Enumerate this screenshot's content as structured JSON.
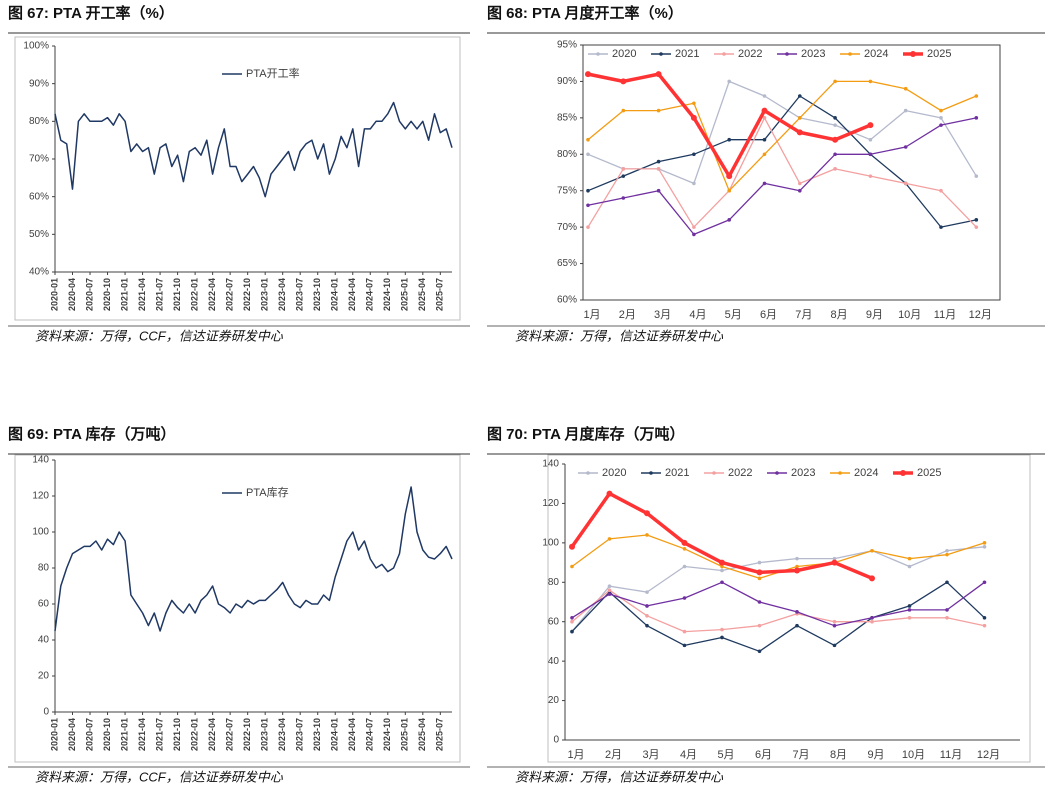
{
  "chart_data": [
    {
      "type": "line",
      "title": "图 67:  PTA 开工率（%）",
      "source": "资料来源：万得，CCF，信达证券研发中心",
      "x": [
        "2020-01",
        "2020-02",
        "2020-03",
        "2020-04",
        "2020-05",
        "2020-06",
        "2020-07",
        "2020-08",
        "2020-09",
        "2020-10",
        "2020-11",
        "2020-12",
        "2021-01",
        "2021-02",
        "2021-03",
        "2021-04",
        "2021-05",
        "2021-06",
        "2021-07",
        "2021-08",
        "2021-09",
        "2021-10",
        "2021-11",
        "2021-12",
        "2022-01",
        "2022-02",
        "2022-03",
        "2022-04",
        "2022-05",
        "2022-06",
        "2022-07",
        "2022-08",
        "2022-09",
        "2022-10",
        "2022-11",
        "2022-12",
        "2023-01",
        "2023-02",
        "2023-03",
        "2023-04",
        "2023-05",
        "2023-06",
        "2023-07",
        "2023-08",
        "2023-09",
        "2023-10",
        "2023-11",
        "2023-12",
        "2024-01",
        "2024-02",
        "2024-03",
        "2024-04",
        "2024-05",
        "2024-06",
        "2024-07",
        "2024-08",
        "2024-09",
        "2024-10",
        "2024-11",
        "2024-12",
        "2025-01",
        "2025-02",
        "2025-03",
        "2025-04",
        "2025-05",
        "2025-06",
        "2025-07",
        "2025-08",
        "2025-09"
      ],
      "xticks": [
        "2020-01",
        "2020-04",
        "2020-07",
        "2020-10",
        "2021-01",
        "2021-04",
        "2021-07",
        "2021-10",
        "2022-01",
        "2022-04",
        "2022-07",
        "2022-10",
        "2023-01",
        "2023-04",
        "2023-07",
        "2023-10",
        "2024-01",
        "2024-04",
        "2024-07",
        "2024-10",
        "2025-01",
        "2025-04",
        "2025-07"
      ],
      "series": [
        {
          "name": "PTA开工率",
          "color": "#1f3864",
          "values": [
            82,
            75,
            74,
            62,
            80,
            82,
            80,
            80,
            80,
            81,
            79,
            82,
            80,
            72,
            74,
            72,
            73,
            66,
            73,
            74,
            68,
            71,
            64,
            72,
            73,
            71,
            75,
            66,
            73,
            78,
            68,
            68,
            64,
            66,
            68,
            65,
            60,
            66,
            68,
            70,
            72,
            67,
            72,
            74,
            75,
            70,
            74,
            66,
            70,
            76,
            73,
            78,
            68,
            78,
            78,
            80,
            80,
            82,
            85,
            80,
            78,
            80,
            78,
            80,
            75,
            82,
            77,
            78,
            73
          ]
        }
      ],
      "ylim": [
        40,
        100
      ],
      "yticks": [
        {
          "value": 40,
          "label": "40%"
        },
        {
          "value": 50,
          "label": "50%"
        },
        {
          "value": 60,
          "label": "60%"
        },
        {
          "value": 70,
          "label": "70%"
        },
        {
          "value": 80,
          "label": "80%"
        },
        {
          "value": 90,
          "label": "90%"
        },
        {
          "value": 100,
          "label": "100%"
        }
      ]
    },
    {
      "type": "line",
      "title": "图 68:  PTA 月度开工率（%）",
      "source": "资料来源：万得，信达证券研发中心",
      "categories": [
        "1月",
        "2月",
        "3月",
        "4月",
        "5月",
        "6月",
        "7月",
        "8月",
        "9月",
        "10月",
        "11月",
        "12月"
      ],
      "series": [
        {
          "name": "2020",
          "color": "#b4b9cc",
          "values": [
            80,
            78,
            78,
            76,
            90,
            88,
            85,
            84,
            82,
            86,
            85,
            77
          ]
        },
        {
          "name": "2021",
          "color": "#1f3a5f",
          "values": [
            75,
            77,
            79,
            80,
            82,
            82,
            88,
            85,
            80,
            76,
            70,
            71
          ]
        },
        {
          "name": "2022",
          "color": "#f4a0a0",
          "values": [
            70,
            78,
            78,
            70,
            75,
            85,
            76,
            78,
            77,
            76,
            75,
            70
          ]
        },
        {
          "name": "2023",
          "color": "#7030a0",
          "values": [
            73,
            74,
            75,
            69,
            71,
            76,
            75,
            80,
            80,
            81,
            84,
            85
          ]
        },
        {
          "name": "2024",
          "color": "#f39c12",
          "values": [
            82,
            86,
            86,
            87,
            75,
            80,
            85,
            90,
            90,
            89,
            86,
            88
          ]
        },
        {
          "name": "2025",
          "color": "#ff3333",
          "values": [
            91,
            90,
            91,
            85,
            77,
            86,
            83,
            82,
            84,
            null,
            null,
            null
          ]
        }
      ],
      "ylim": [
        60,
        95
      ],
      "yticks": [
        {
          "value": 60,
          "label": "60%"
        },
        {
          "value": 65,
          "label": "65%"
        },
        {
          "value": 70,
          "label": "70%"
        },
        {
          "value": 75,
          "label": "75%"
        },
        {
          "value": 80,
          "label": "80%"
        },
        {
          "value": 85,
          "label": "85%"
        },
        {
          "value": 90,
          "label": "90%"
        },
        {
          "value": 95,
          "label": "95%"
        }
      ]
    },
    {
      "type": "line",
      "title": "图 69:  PTA 库存（万吨）",
      "source": "资料来源：万得，CCF，信达证券研发中心",
      "x": [
        "2020-01",
        "2020-02",
        "2020-03",
        "2020-04",
        "2020-05",
        "2020-06",
        "2020-07",
        "2020-08",
        "2020-09",
        "2020-10",
        "2020-11",
        "2020-12",
        "2021-01",
        "2021-02",
        "2021-03",
        "2021-04",
        "2021-05",
        "2021-06",
        "2021-07",
        "2021-08",
        "2021-09",
        "2021-10",
        "2021-11",
        "2021-12",
        "2022-01",
        "2022-02",
        "2022-03",
        "2022-04",
        "2022-05",
        "2022-06",
        "2022-07",
        "2022-08",
        "2022-09",
        "2022-10",
        "2022-11",
        "2022-12",
        "2023-01",
        "2023-02",
        "2023-03",
        "2023-04",
        "2023-05",
        "2023-06",
        "2023-07",
        "2023-08",
        "2023-09",
        "2023-10",
        "2023-11",
        "2023-12",
        "2024-01",
        "2024-02",
        "2024-03",
        "2024-04",
        "2024-05",
        "2024-06",
        "2024-07",
        "2024-08",
        "2024-09",
        "2024-10",
        "2024-11",
        "2024-12",
        "2025-01",
        "2025-02",
        "2025-03",
        "2025-04",
        "2025-05",
        "2025-06",
        "2025-07",
        "2025-08",
        "2025-09"
      ],
      "xticks": [
        "2020-01",
        "2020-04",
        "2020-07",
        "2020-10",
        "2021-01",
        "2021-04",
        "2021-07",
        "2021-10",
        "2022-01",
        "2022-04",
        "2022-07",
        "2022-10",
        "2023-01",
        "2023-04",
        "2023-07",
        "2023-10",
        "2024-01",
        "2024-04",
        "2024-07",
        "2024-10",
        "2025-01",
        "2025-04",
        "2025-07"
      ],
      "series": [
        {
          "name": "PTA库存",
          "color": "#1f3864",
          "values": [
            45,
            70,
            80,
            88,
            90,
            92,
            92,
            95,
            90,
            96,
            93,
            100,
            95,
            65,
            60,
            55,
            48,
            55,
            45,
            55,
            62,
            58,
            55,
            60,
            55,
            62,
            65,
            70,
            60,
            58,
            55,
            60,
            58,
            62,
            60,
            62,
            62,
            65,
            68,
            72,
            65,
            60,
            58,
            62,
            60,
            60,
            65,
            62,
            75,
            85,
            95,
            100,
            90,
            95,
            85,
            80,
            82,
            78,
            80,
            88,
            110,
            125,
            100,
            90,
            86,
            85,
            88,
            92,
            85
          ]
        }
      ],
      "ylim": [
        0,
        140
      ],
      "yticks": [
        0,
        20,
        40,
        60,
        80,
        100,
        120,
        140
      ]
    },
    {
      "type": "line",
      "title": "图 70:  PTA 月度库存（万吨）",
      "source": "资料来源：万得，信达证券研发中心",
      "categories": [
        "1月",
        "2月",
        "3月",
        "4月",
        "5月",
        "6月",
        "7月",
        "8月",
        "9月",
        "10月",
        "11月",
        "12月"
      ],
      "series": [
        {
          "name": "2020",
          "color": "#b4b9cc",
          "values": [
            55,
            78,
            75,
            88,
            86,
            90,
            92,
            92,
            96,
            88,
            96,
            98
          ]
        },
        {
          "name": "2021",
          "color": "#1f3a5f",
          "values": [
            55,
            75,
            58,
            48,
            52,
            45,
            58,
            48,
            62,
            68,
            80,
            62
          ]
        },
        {
          "name": "2022",
          "color": "#f4a0a0",
          "values": [
            60,
            76,
            63,
            55,
            56,
            58,
            64,
            60,
            60,
            62,
            62,
            58
          ]
        },
        {
          "name": "2023",
          "color": "#7030a0",
          "values": [
            62,
            74,
            68,
            72,
            80,
            70,
            65,
            58,
            62,
            66,
            66,
            80
          ]
        },
        {
          "name": "2024",
          "color": "#f39c12",
          "values": [
            88,
            102,
            104,
            97,
            88,
            82,
            88,
            90,
            96,
            92,
            94,
            100
          ]
        },
        {
          "name": "2025",
          "color": "#ff3333",
          "values": [
            98,
            125,
            115,
            100,
            90,
            85,
            86,
            90,
            82,
            null,
            null,
            null
          ]
        }
      ],
      "ylim": [
        0,
        140
      ],
      "yticks": [
        0,
        20,
        40,
        60,
        80,
        100,
        120,
        140
      ]
    }
  ]
}
